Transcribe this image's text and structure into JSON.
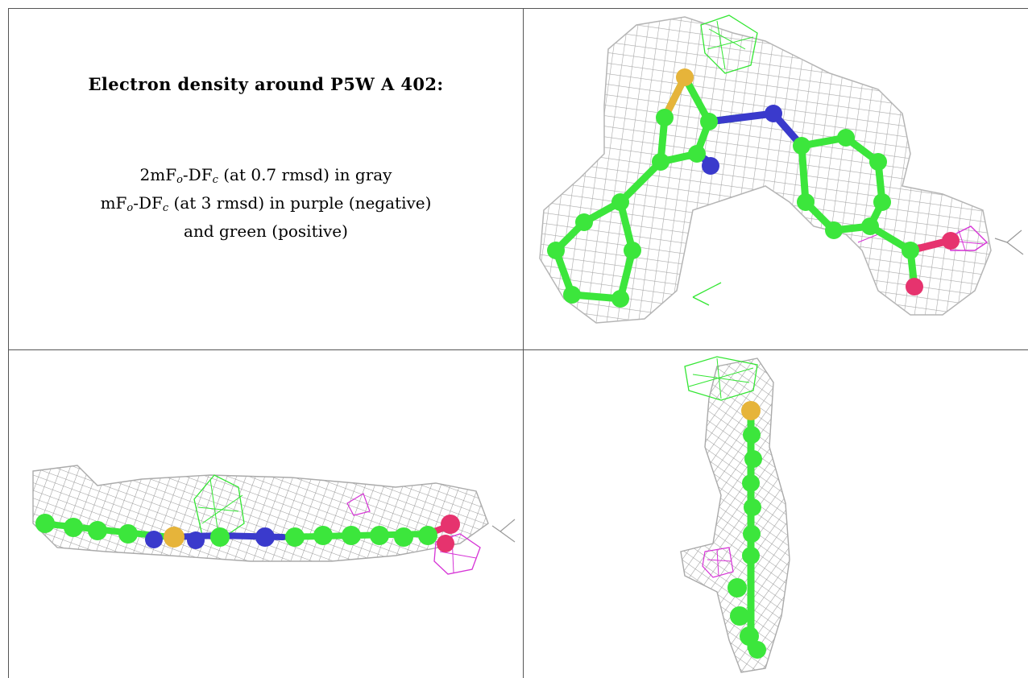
{
  "caption": {
    "title": "Electron density around P5W A 402:",
    "line1_prefix": "2mF",
    "line1_sub1": "o",
    "line1_mid": "-DF",
    "line1_sub2": "c",
    "line1_suffix": " (at 0.7 rmsd) in gray",
    "line2_prefix": "mF",
    "line2_sub1": "o",
    "line2_mid": "-DF",
    "line2_sub2": "c",
    "line2_suffix": " (at 3 rmsd) in purple (negative)",
    "line3": "and green (positive)"
  },
  "panels": [
    {
      "view": "top-right",
      "content": "density-map-front-view"
    },
    {
      "view": "bottom-left",
      "content": "density-map-edge-view"
    },
    {
      "view": "bottom-right",
      "content": "density-map-side-view"
    }
  ],
  "colors": {
    "mesh_2fofc": "#a9a9a9",
    "mesh_negative": "#d633d6",
    "mesh_positive": "#33e633",
    "carbon": "#3ce63c",
    "nitrogen": "#3a3acc",
    "sulfur": "#e6b43a",
    "oxygen": "#e6336e",
    "border": "#555555"
  }
}
